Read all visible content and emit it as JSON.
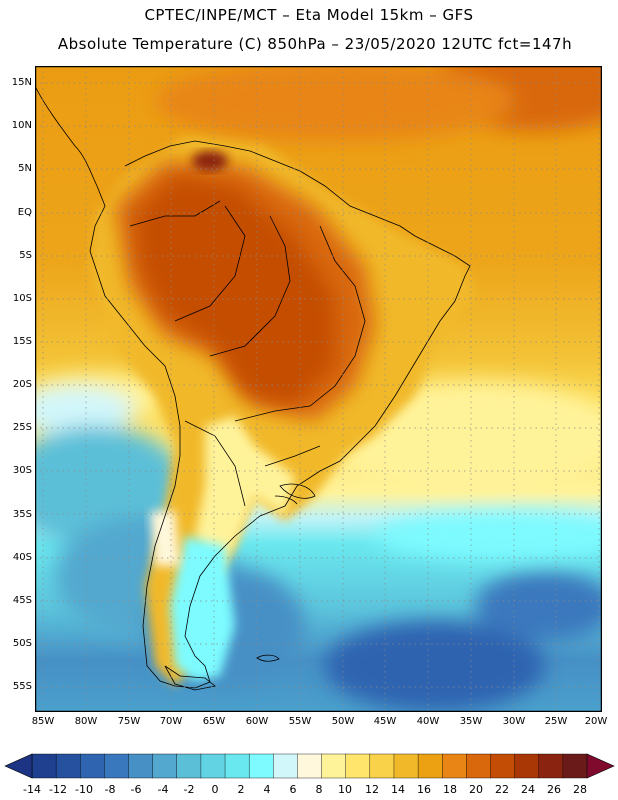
{
  "header": {
    "line1": "CPTEC/INPE/MCT  –   Eta Model 15km – GFS",
    "line2": "Absolute Temperature (C) 850hPa – 23/05/2020 12UTC fct=147h"
  },
  "map": {
    "lat_labels": [
      "15N",
      "10N",
      "5N",
      "EQ",
      "5S",
      "10S",
      "15S",
      "20S",
      "25S",
      "30S",
      "35S",
      "40S",
      "45S",
      "50S",
      "55S"
    ],
    "lon_labels": [
      "85W",
      "80W",
      "75W",
      "70W",
      "65W",
      "60W",
      "55W",
      "50W",
      "45W",
      "40W",
      "35W",
      "30W",
      "25W",
      "20W"
    ]
  },
  "colorbar": {
    "labels": [
      "-14",
      "-12",
      "-10",
      "-8",
      "-6",
      "-4",
      "-2",
      "0",
      "2",
      "4",
      "6",
      "8",
      "10",
      "12",
      "14",
      "16",
      "18",
      "20",
      "22",
      "24",
      "26",
      "28"
    ],
    "colors": [
      "#1f3f8f",
      "#25519f",
      "#2f64b0",
      "#3a78bd",
      "#4790c6",
      "#52a8cf",
      "#5cbfd8",
      "#62d3e3",
      "#6ae8ef",
      "#7dfbff",
      "#d2f7fb",
      "#fff8dc",
      "#fff39a",
      "#ffe56b",
      "#fad249",
      "#f1b92a",
      "#eca113",
      "#e88514",
      "#d9670c",
      "#c44d06",
      "#a93705",
      "#8a2410",
      "#6b1a1a"
    ],
    "under_color": "#1c3483",
    "over_color": "#800a2e"
  }
}
